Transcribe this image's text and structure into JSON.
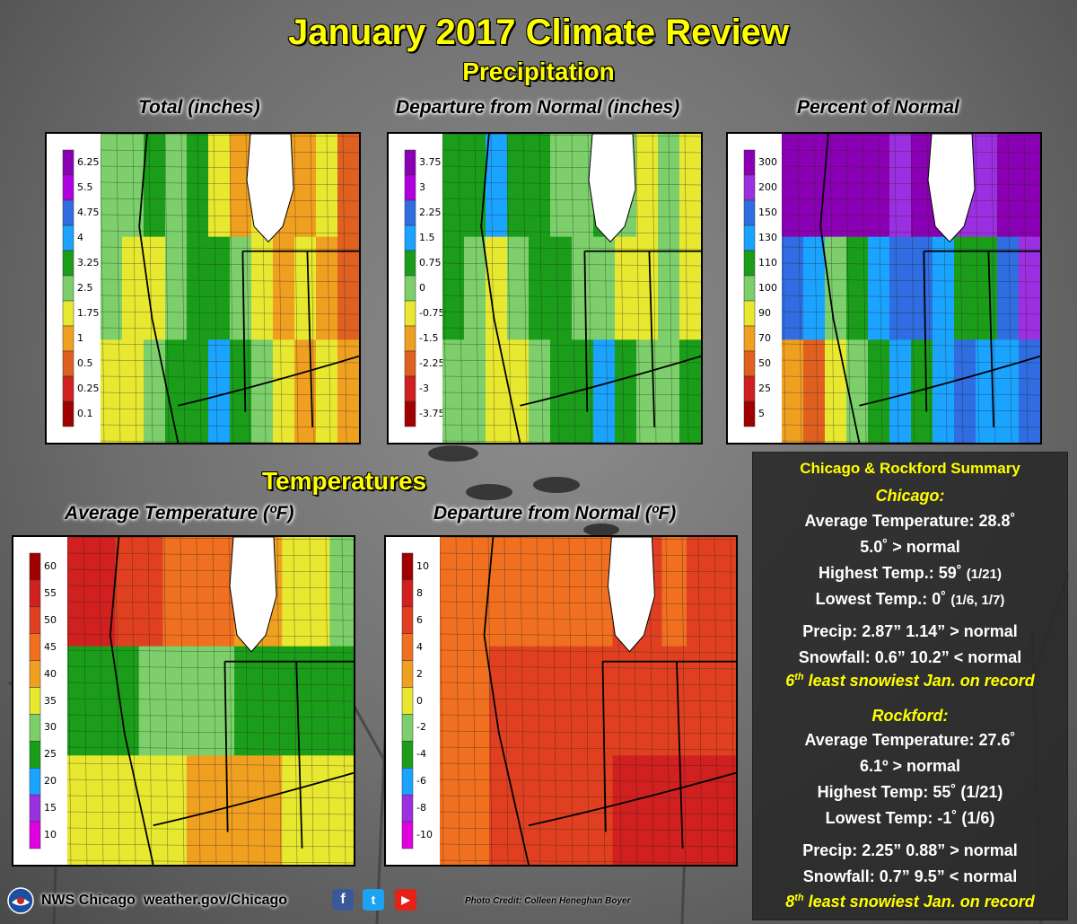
{
  "title": "January 2017 Climate Review",
  "section_precip": "Precipitation",
  "section_temps": "Temperatures",
  "maps": [
    {
      "title": "Total (inches)",
      "legend": [
        "6.25",
        "5.5",
        "4.75",
        "4",
        "3.25",
        "2.5",
        "1.75",
        "1",
        "0.5",
        "0.25",
        "0.1"
      ],
      "colors": [
        "#8b00b3",
        "#b000e0",
        "#2f6de0",
        "#1aa3ff",
        "#1a9e1a",
        "#7ccf6a",
        "#e8e830",
        "#f0a020",
        "#e06020",
        "#d02020",
        "#a00000"
      ]
    },
    {
      "title": "Departure from Normal (inches)",
      "legend": [
        "3.75",
        "3",
        "2.25",
        "1.5",
        "0.75",
        "0",
        "-0.75",
        "-1.5",
        "-2.25",
        "-3",
        "-3.75"
      ],
      "colors": [
        "#8b00b3",
        "#b000e0",
        "#2f6de0",
        "#1aa3ff",
        "#1a9e1a",
        "#7ccf6a",
        "#e8e830",
        "#f0a020",
        "#e06020",
        "#d02020",
        "#a00000"
      ]
    },
    {
      "title": "Percent of Normal",
      "legend": [
        "300",
        "200",
        "150",
        "130",
        "110",
        "100",
        "90",
        "70",
        "50",
        "25",
        "5"
      ],
      "colors": [
        "#8b00b3",
        "#9b30e0",
        "#2f6de0",
        "#1aa3ff",
        "#1a9e1a",
        "#7ccf6a",
        "#e8e830",
        "#f0a020",
        "#e06020",
        "#d02020",
        "#a00000"
      ]
    },
    {
      "title": "Average Temperature (ºF)",
      "legend": [
        "60",
        "55",
        "50",
        "45",
        "40",
        "35",
        "30",
        "25",
        "20",
        "15",
        "10"
      ],
      "colors": [
        "#a00000",
        "#d02020",
        "#e04020",
        "#f07020",
        "#f0a020",
        "#e8e830",
        "#7ccf6a",
        "#1a9e1a",
        "#1aa3ff",
        "#9b30e0",
        "#e000e0"
      ]
    },
    {
      "title": "Departure from Normal (ºF)",
      "legend": [
        "10",
        "8",
        "6",
        "4",
        "2",
        "0",
        "-2",
        "-4",
        "-6",
        "-8",
        "-10"
      ],
      "colors": [
        "#a00000",
        "#d02020",
        "#e04020",
        "#f07020",
        "#f0a020",
        "#e8e830",
        "#7ccf6a",
        "#1a9e1a",
        "#1aa3ff",
        "#9b30e0",
        "#e000e0"
      ]
    }
  ],
  "summary": {
    "header": "Chicago & Rockford Summary",
    "chicago": {
      "name": "Chicago:",
      "avg_temp": "Average Temperature:  28.8˚",
      "avg_dep": "5.0˚ > normal",
      "high": "Highest Temp.:  59˚",
      "high_date": "(1/21)",
      "low": "Lowest Temp.:  0˚",
      "low_date": "(1/6, 1/7)",
      "precip": "Precip: 2.87”  1.14” > normal",
      "snow": "Snowfall: 0.6”  10.2” < normal",
      "rank_num": "6",
      "rank_sup": "th",
      "rank_text": " least snowiest Jan. on record"
    },
    "rockford": {
      "name": "Rockford:",
      "avg_temp": "Average Temperature:  27.6˚",
      "avg_dep": "6.1º > normal",
      "high": "Highest Temp:  55˚ (1/21)",
      "low": "Lowest Temp:  -1˚ (1/6)",
      "precip": "Precip:  2.25”  0.88” > normal",
      "snow": "Snowfall: 0.7”  9.5” < normal",
      "rank_num": "8",
      "rank_sup": "th",
      "rank_text": " least snowiest Jan. on record"
    }
  },
  "footer": {
    "office": "NWS Chicago",
    "url": "weather.gov/Chicago",
    "credit": "Photo Credit: Colleen Heneghan Boyer"
  }
}
